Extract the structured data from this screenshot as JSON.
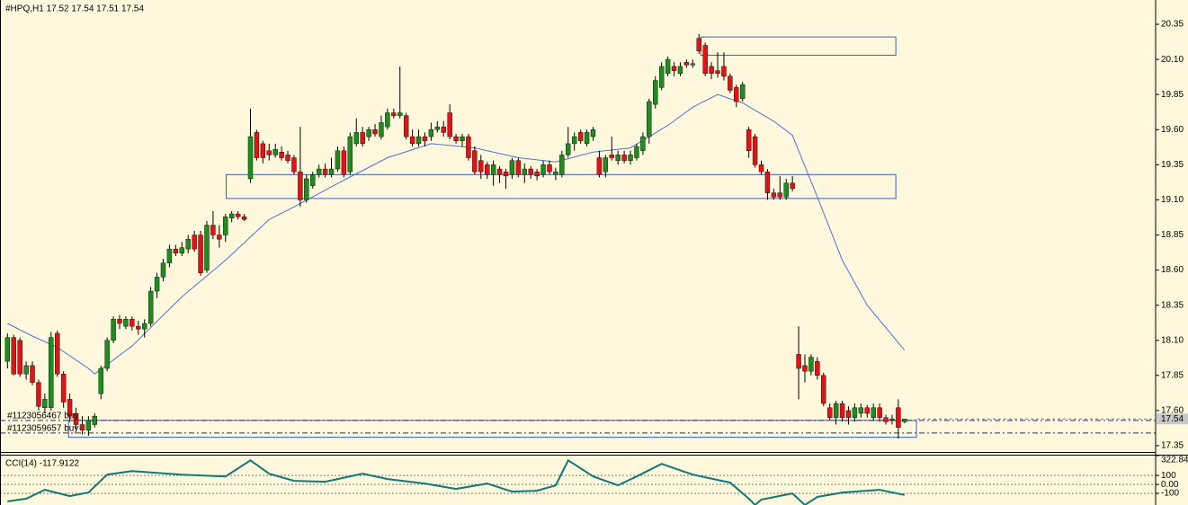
{
  "chart_data": {
    "type": "candlestick",
    "title": "#HPQ,H1  17.52 17.54 17.51 17.54",
    "up_color": "#1e8c1e",
    "down_color": "#e01414",
    "xlim": [
      -1.2,
      184.3
    ],
    "ylim": [
      17.305,
      20.523
    ],
    "yticks": [
      20.35,
      {
        "value": 20.1,
        "label": "20.10"
      },
      19.85,
      {
        "value": 19.6,
        "label": "19.60"
      },
      19.35,
      {
        "value": 19.1,
        "label": "19.10"
      },
      18.85,
      {
        "value": 18.6,
        "label": "18.60"
      },
      18.35,
      {
        "value": 18.1,
        "label": "18.10"
      },
      17.85,
      {
        "value": 17.6,
        "label": "17.60"
      },
      17.35
    ],
    "open": [
      17.95,
      18.12,
      18.1,
      17.86,
      17.92,
      17.8,
      17.62,
      17.62,
      18.15,
      17.86,
      17.68,
      17.58,
      17.5,
      17.46,
      17.5,
      17.72,
      17.9,
      18.1,
      18.25,
      18.2,
      18.25,
      18.2,
      18.18,
      18.22,
      18.45,
      18.55,
      18.65,
      18.75,
      18.72,
      18.75,
      18.85,
      18.85,
      18.6,
      18.92,
      18.85,
      18.85,
      18.97,
      19.0,
      18.98,
      19.25,
      19.58,
      19.5,
      19.45,
      19.42,
      19.44,
      19.42,
      19.4,
      19.3,
      19.1,
      19.2,
      19.28,
      19.32,
      19.28,
      19.32,
      19.45,
      19.3,
      19.5,
      19.58,
      19.55,
      19.6,
      19.55,
      19.62,
      19.72,
      19.7,
      19.7,
      19.55,
      19.5,
      19.55,
      19.55,
      19.6,
      19.62,
      19.72,
      19.55,
      19.52,
      19.55,
      19.45,
      19.38,
      19.35,
      19.28,
      19.32,
      19.3,
      19.28,
      19.38,
      19.28,
      19.32,
      19.3,
      19.28,
      19.35,
      19.28,
      19.28,
      19.42,
      19.5,
      19.58,
      19.5,
      19.55,
      19.4,
      19.3,
      19.42,
      19.38,
      19.42,
      19.38,
      19.4,
      19.45,
      19.55,
      19.78,
      19.9,
      20.0,
      20.05,
      20.0,
      20.08,
      20.06,
      20.25,
      20.2,
      20.05,
      20.02,
      20.05,
      19.98,
      19.9,
      19.82,
      19.6,
      19.55,
      19.35,
      19.3,
      19.15,
      19.15,
      19.12,
      19.22,
      18.0,
      17.92,
      17.88,
      17.95,
      17.85,
      17.62,
      17.55,
      17.65,
      17.6,
      17.55,
      17.58,
      17.62,
      17.55,
      17.62,
      17.55,
      17.53,
      17.62,
      17.52
    ],
    "high": [
      18.15,
      18.14,
      18.12,
      17.95,
      17.95,
      17.82,
      17.72,
      18.16,
      18.17,
      17.88,
      17.72,
      17.62,
      17.56,
      17.56,
      17.58,
      17.92,
      18.12,
      18.27,
      18.28,
      18.27,
      18.27,
      18.24,
      18.25,
      18.48,
      18.58,
      18.68,
      18.78,
      18.78,
      18.8,
      18.85,
      18.88,
      18.88,
      18.95,
      19.02,
      18.92,
      19.0,
      19.02,
      19.02,
      19.0,
      19.75,
      19.6,
      19.52,
      19.5,
      19.5,
      19.48,
      19.45,
      19.42,
      19.62,
      19.28,
      19.3,
      19.35,
      19.36,
      19.4,
      19.48,
      19.48,
      19.58,
      19.68,
      19.62,
      19.62,
      19.64,
      19.7,
      19.75,
      19.75,
      20.05,
      19.72,
      19.6,
      19.6,
      19.58,
      19.65,
      19.66,
      19.66,
      19.78,
      19.57,
      19.57,
      19.57,
      19.48,
      19.42,
      19.37,
      19.38,
      19.34,
      19.32,
      19.4,
      19.4,
      19.36,
      19.34,
      19.32,
      19.38,
      19.38,
      19.33,
      19.45,
      19.62,
      19.58,
      19.6,
      19.6,
      19.62,
      19.45,
      19.42,
      19.55,
      19.45,
      19.45,
      19.45,
      19.5,
      19.58,
      19.82,
      19.98,
      20.08,
      20.12,
      20.08,
      20.08,
      20.1,
      20.1,
      20.28,
      20.22,
      20.08,
      20.15,
      20.15,
      20.0,
      19.92,
      19.94,
      19.62,
      19.57,
      19.38,
      19.32,
      19.18,
      19.27,
      19.25,
      19.27,
      18.2,
      18.0,
      18.0,
      17.98,
      17.87,
      17.65,
      17.67,
      17.67,
      17.63,
      17.65,
      17.65,
      17.64,
      17.65,
      17.65,
      17.57,
      17.57,
      17.68,
      17.54
    ],
    "low": [
      17.9,
      17.85,
      17.84,
      17.82,
      17.78,
      17.6,
      17.58,
      17.6,
      17.84,
      17.62,
      17.52,
      17.47,
      17.43,
      17.42,
      17.48,
      17.68,
      17.88,
      18.08,
      18.18,
      18.18,
      18.17,
      18.14,
      18.12,
      18.2,
      18.4,
      18.52,
      18.62,
      18.7,
      18.7,
      18.72,
      18.73,
      18.56,
      18.58,
      18.82,
      18.76,
      18.8,
      18.94,
      18.96,
      18.95,
      19.22,
      19.38,
      19.36,
      19.38,
      19.4,
      19.38,
      19.36,
      19.28,
      19.05,
      19.08,
      19.18,
      19.26,
      19.26,
      19.26,
      19.3,
      19.26,
      19.28,
      19.48,
      19.48,
      19.52,
      19.55,
      19.53,
      19.6,
      19.68,
      19.68,
      19.53,
      19.48,
      19.48,
      19.48,
      19.52,
      19.58,
      19.55,
      19.53,
      19.5,
      19.48,
      19.38,
      19.28,
      19.25,
      19.25,
      19.2,
      19.22,
      19.18,
      19.25,
      19.26,
      19.22,
      19.25,
      19.24,
      19.26,
      19.28,
      19.24,
      19.26,
      19.4,
      19.45,
      19.5,
      19.48,
      19.52,
      19.26,
      19.26,
      19.38,
      19.35,
      19.36,
      19.35,
      19.38,
      19.42,
      19.5,
      19.75,
      19.88,
      19.98,
      19.98,
      19.98,
      20.04,
      20.04,
      20.14,
      19.98,
      19.96,
      19.97,
      19.95,
      19.86,
      19.76,
      19.8,
      19.4,
      19.33,
      19.28,
      19.1,
      19.1,
      19.1,
      19.1,
      19.16,
      17.68,
      17.8,
      17.85,
      17.82,
      17.63,
      17.53,
      17.5,
      17.52,
      17.5,
      17.52,
      17.55,
      17.55,
      17.53,
      17.52,
      17.5,
      17.5,
      17.4,
      17.51
    ],
    "close": [
      18.12,
      17.86,
      17.86,
      17.92,
      17.8,
      17.63,
      17.68,
      18.12,
      17.86,
      17.66,
      17.56,
      17.5,
      17.46,
      17.53,
      17.56,
      17.9,
      18.1,
      18.25,
      18.22,
      18.25,
      18.2,
      18.18,
      18.22,
      18.45,
      18.55,
      18.65,
      18.75,
      18.72,
      18.76,
      18.82,
      18.75,
      18.58,
      18.92,
      18.85,
      18.82,
      18.98,
      19.0,
      18.98,
      18.96,
      19.55,
      19.4,
      19.4,
      19.42,
      19.46,
      19.4,
      19.38,
      19.3,
      19.1,
      19.25,
      19.28,
      19.32,
      19.28,
      19.32,
      19.45,
      19.28,
      19.55,
      19.58,
      19.5,
      19.6,
      19.57,
      19.65,
      19.72,
      19.7,
      19.72,
      19.55,
      19.5,
      19.55,
      19.52,
      19.6,
      19.62,
      19.58,
      19.55,
      19.52,
      19.55,
      19.4,
      19.3,
      19.3,
      19.28,
      19.35,
      19.28,
      19.27,
      19.38,
      19.28,
      19.32,
      19.28,
      19.27,
      19.35,
      19.3,
      19.3,
      19.42,
      19.5,
      19.55,
      19.52,
      19.58,
      19.6,
      19.28,
      19.4,
      19.4,
      19.42,
      19.38,
      19.42,
      19.48,
      19.55,
      19.8,
      19.95,
      20.05,
      20.1,
      20.02,
      20.05,
      20.06,
      20.07,
      20.16,
      20.0,
      20.0,
      20.0,
      19.98,
      19.88,
      19.8,
      19.92,
      19.45,
      19.35,
      19.3,
      19.15,
      19.12,
      19.12,
      19.22,
      19.18,
      17.9,
      17.88,
      17.98,
      17.85,
      17.65,
      17.55,
      17.65,
      17.55,
      17.55,
      17.62,
      17.62,
      17.58,
      17.62,
      17.55,
      17.52,
      17.54,
      17.48,
      17.54
    ],
    "ma": {
      "color": "#4f6fdc",
      "x": [
        0,
        4,
        8,
        13,
        14,
        20,
        28,
        35,
        42,
        46,
        54,
        61,
        68,
        75,
        82,
        88,
        94,
        100,
        106,
        110,
        114,
        118,
        123,
        126,
        130,
        134,
        138,
        144
      ],
      "values": [
        18.22,
        18.13,
        18.05,
        17.9,
        17.86,
        18.06,
        18.41,
        18.67,
        18.96,
        19.05,
        19.24,
        19.4,
        19.5,
        19.47,
        19.4,
        19.37,
        19.44,
        19.47,
        19.63,
        19.76,
        19.85,
        19.79,
        19.66,
        19.56,
        19.12,
        18.67,
        18.35,
        18.03
      ]
    },
    "zones": [
      {
        "x0": 111.3,
        "x1": 142.6,
        "top": 20.26,
        "bottom": 20.13
      },
      {
        "x0": 35.1,
        "x1": 142.6,
        "top": 19.28,
        "bottom": 19.11
      },
      {
        "x0": 9.8,
        "x1": 145.9,
        "top": 17.53,
        "bottom": 17.41
      }
    ],
    "orders": [
      {
        "label": "#1123056467 buy",
        "price": 17.53
      },
      {
        "label": "#1123059657 buy",
        "price": 17.44
      }
    ],
    "last_price": 17.54,
    "cci": {
      "label": "CCI(14) -117.9122",
      "color": "#0f7878",
      "ylim": [
        -230,
        322.842
      ],
      "yticks": [
        322.842,
        100,
        {
          "value": 0,
          "label": "0.00"
        },
        -100
      ],
      "levels": [
        100,
        0,
        -100
      ],
      "x": [
        0,
        3,
        6,
        10,
        13,
        16,
        20,
        28,
        35,
        39,
        42,
        46,
        51,
        57,
        61,
        67,
        72,
        77,
        81,
        85,
        88,
        90,
        94,
        98,
        101,
        105,
        110,
        116,
        119,
        120,
        121,
        126,
        128,
        130,
        134,
        140,
        144
      ],
      "values": [
        -190,
        -160,
        -60,
        -130,
        -90,
        110,
        150,
        110,
        90,
        270,
        120,
        40,
        30,
        120,
        60,
        10,
        -50,
        10,
        -80,
        -70,
        -10,
        270,
        90,
        -10,
        90,
        230,
        110,
        20,
        -160,
        -230,
        -170,
        -100,
        -230,
        -140,
        -90,
        -60,
        -117.9122
      ]
    }
  }
}
